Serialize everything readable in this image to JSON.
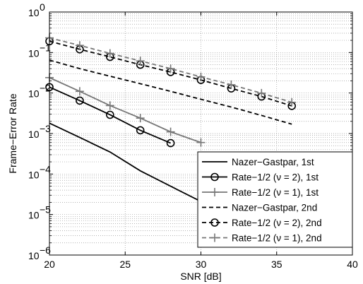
{
  "chart_data": {
    "type": "line",
    "title": "",
    "xlabel": "SNR [dB]",
    "ylabel": "Frame−Error Rate",
    "xlim": [
      20,
      40
    ],
    "ylim": [
      1e-06,
      1
    ],
    "yscale": "log",
    "grid": true,
    "legend_position": "bottom-right",
    "x_ticks": [
      20,
      25,
      30,
      35,
      40
    ],
    "x_tick_labels": [
      "20",
      "25",
      "30",
      "35",
      "40"
    ],
    "y_ticks": [
      1e-06,
      1e-05,
      0.0001,
      0.001,
      0.01,
      0.1,
      1
    ],
    "y_tick_labels": [
      {
        "base": "10",
        "exp": "−6"
      },
      {
        "base": "10",
        "exp": "−5"
      },
      {
        "base": "10",
        "exp": "−4"
      },
      {
        "base": "10",
        "exp": "−3"
      },
      {
        "base": "10",
        "exp": "−2"
      },
      {
        "base": "10",
        "exp": "−1"
      },
      {
        "base": "10",
        "exp": "0"
      }
    ],
    "series": [
      {
        "name": "Nazer−Gastpar, 1st",
        "color": "#000000",
        "dash": "solid",
        "marker": "none",
        "x": [
          20,
          22,
          24,
          26,
          28,
          30
        ],
        "y": [
          0.0018,
          0.0008,
          0.00035,
          0.00012,
          5e-05,
          2.1e-05
        ]
      },
      {
        "name": "Rate−1/2 (ν = 2), 1st",
        "color": "#000000",
        "dash": "solid",
        "marker": "circle",
        "x": [
          20,
          22,
          24,
          26,
          28
        ],
        "y": [
          0.014,
          0.0065,
          0.0029,
          0.0012,
          0.00058
        ]
      },
      {
        "name": "Rate−1/2 (ν = 1), 1st",
        "color": "#777777",
        "dash": "solid",
        "marker": "plus",
        "x": [
          20,
          22,
          24,
          26,
          28,
          30
        ],
        "y": [
          0.024,
          0.011,
          0.0049,
          0.0024,
          0.0011,
          0.0006
        ]
      },
      {
        "name": "Nazer−Gastpar, 2nd",
        "color": "#000000",
        "dash": "dashed",
        "marker": "none",
        "x": [
          20,
          22,
          24,
          26,
          28,
          30,
          32,
          34,
          36
        ],
        "y": [
          0.065,
          0.04,
          0.026,
          0.017,
          0.011,
          0.007,
          0.0045,
          0.0028,
          0.0017
        ]
      },
      {
        "name": "Rate−1/2 (ν = 2), 2nd",
        "color": "#000000",
        "dash": "dashed",
        "marker": "circle",
        "x": [
          20,
          22,
          24,
          26,
          28,
          30,
          32,
          34,
          36
        ],
        "y": [
          0.19,
          0.12,
          0.078,
          0.05,
          0.033,
          0.021,
          0.013,
          0.0082,
          0.0048
        ]
      },
      {
        "name": "Rate−1/2 (ν = 1), 2nd",
        "color": "#777777",
        "dash": "dashed",
        "marker": "plus",
        "x": [
          20,
          22,
          24,
          26,
          28,
          30,
          32,
          34,
          36
        ],
        "y": [
          0.23,
          0.15,
          0.095,
          0.062,
          0.04,
          0.025,
          0.016,
          0.0099,
          0.0059
        ]
      }
    ]
  }
}
